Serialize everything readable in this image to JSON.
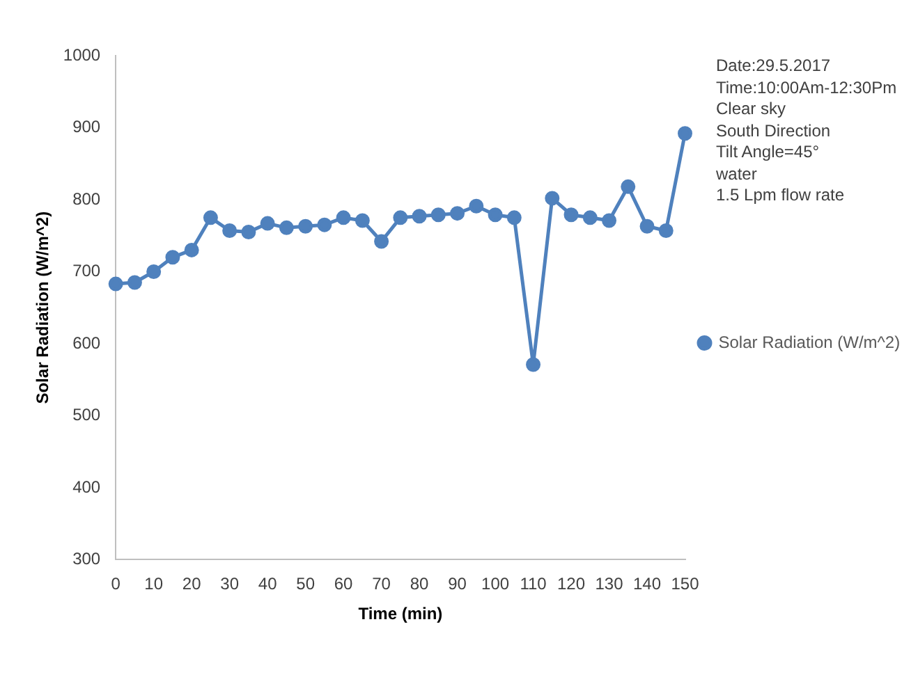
{
  "chart_data": {
    "type": "line",
    "xlabel": "Time (min)",
    "ylabel": "Solar Radiation (W/m^2)",
    "x": [
      0,
      5,
      10,
      15,
      20,
      25,
      30,
      35,
      40,
      45,
      50,
      55,
      60,
      65,
      70,
      75,
      80,
      85,
      90,
      95,
      100,
      105,
      110,
      115,
      120,
      125,
      130,
      135,
      140,
      145,
      150
    ],
    "series": [
      {
        "name": "Solar Radiation (W/m^2)",
        "color": "#4f81bd",
        "values": [
          683,
          685,
          700,
          720,
          730,
          775,
          757,
          755,
          767,
          761,
          763,
          765,
          775,
          771,
          742,
          775,
          777,
          779,
          781,
          791,
          779,
          775,
          571,
          802,
          779,
          775,
          771,
          818,
          763,
          757,
          892
        ]
      }
    ],
    "xlim": [
      0,
      150
    ],
    "xticks": [
      0,
      10,
      20,
      30,
      40,
      50,
      60,
      70,
      80,
      90,
      100,
      110,
      120,
      130,
      140,
      150
    ],
    "ylim": [
      300,
      1000
    ],
    "yticks": [
      300,
      400,
      500,
      600,
      700,
      800,
      900,
      1000
    ],
    "grid": false,
    "legend": "right",
    "marker": "circle",
    "line_style": "solid",
    "annotations": [
      "Date:29.5.2017",
      "Time:10:00Am-12:30Pm",
      "Clear sky",
      "South Direction",
      "Tilt Angle=45°",
      "water",
      "1.5 Lpm flow rate"
    ]
  }
}
